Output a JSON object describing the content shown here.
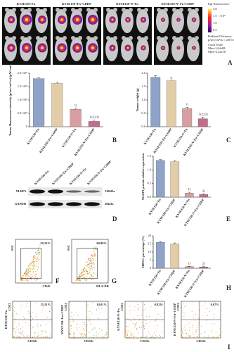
{
  "panel_a": {
    "panel": "A",
    "groups": [
      "KYSE150+Fn",
      "KYSE150+Fn+CDDP",
      "KYSE150-N+Fn",
      "KYSE150-N+Fn+CDDP"
    ],
    "colorbar": {
      "title": "Epi-fluorescence",
      "ticks": [
        "2.0",
        "1.5",
        "1.0",
        "0.5"
      ],
      "unit": "×10⁹",
      "label": "Radiant Efficiency",
      "units": "p/sec/cm²/sr / µW/cm²",
      "scale": "Color Scale",
      "min": "Min=1.64e08",
      "max": "Max=2.42e10"
    }
  },
  "panel_d": {
    "panel": "D",
    "lanes": [
      "KYSE150+Fn",
      "KYSE150+Fn+CDDP",
      "KYSE150-N+Fn",
      "KYSE150-N+Fn+CDDP"
    ],
    "bands": [
      {
        "name": "NLRP3",
        "size": "118kDa"
      },
      {
        "name": "GAPDH",
        "size": "36kDa"
      }
    ]
  },
  "flow": [
    {
      "panel": "F",
      "ylabel": "SSC",
      "xlabel": "CD45",
      "percent": "59.23%"
    },
    {
      "panel": "G",
      "ylabel": "SSC",
      "xlabel": "HLA-DR",
      "percent": "69.88%"
    }
  ],
  "panel_i": {
    "panel": "I",
    "ylabel": "CD33",
    "xlabel": "CD11b",
    "groups": [
      "KYSE150+Fn",
      "KYSE150+Fn+CDDP",
      "KYSE150-N+Fn",
      "KYSE150-N+Fn+CDDP"
    ],
    "percents": [
      "15.21%",
      "14.01%",
      "0.82%",
      "0.67%"
    ]
  },
  "chart_data": [
    {
      "type": "bar",
      "panel": "B",
      "ylabel": "Tumor fluorescence intensity (p/sec/cm²/sr)/(µW/cm²)",
      "categories": [
        "KYSE150+Fn",
        "KYSE150+Fn+CDDP",
        "KYSE150-N+Fn",
        "KYSE150-N+Fn+CDDP"
      ],
      "values": [
        1800000000,
        1620000000,
        650000000,
        200000000
      ],
      "errors": [
        30000000,
        40000000,
        40000000,
        50000000
      ],
      "annotations": [
        null,
        null,
        "1)",
        "1),2),3)"
      ],
      "colors": [
        "#8fa3c9",
        "#e3cda8",
        "#d99ea0",
        "#c46c8e"
      ],
      "ylim": [
        0,
        2000000000
      ],
      "yticks": [
        0,
        {
          "value": 500000000,
          "label": "5.0×10⁸"
        },
        {
          "value": 1000000000,
          "label": "1.0×10⁹"
        },
        {
          "value": 1500000000,
          "label": "1.5×10⁹"
        },
        {
          "value": 2000000000,
          "label": "2.0×10⁹"
        }
      ]
    },
    {
      "type": "bar",
      "panel": "C",
      "ylabel": "Tumor weight (g)",
      "categories": [
        "KYSE150+Fn",
        "KYSE150+Fn+CDDP",
        "KYSE150-N+Fn",
        "KYSE150-N+Fn+CDDP"
      ],
      "values": [
        1.85,
        1.72,
        0.68,
        0.3
      ],
      "errors": [
        0.06,
        0.1,
        0.05,
        0.06
      ],
      "annotations": [
        null,
        null,
        "1)",
        "1),2),3)"
      ],
      "colors": [
        "#8fa3c9",
        "#e3cda8",
        "#d99ea0",
        "#c46c8e"
      ],
      "ylim": [
        0,
        2.0
      ],
      "yticks": [
        {
          "value": 0,
          "label": "0.0"
        },
        0.5,
        {
          "value": 1,
          "label": "1.0"
        },
        1.5,
        {
          "value": 2,
          "label": "2.0"
        }
      ]
    },
    {
      "type": "bar",
      "panel": "E",
      "ylabel": "NLRP3 protein relative expression",
      "categories": [
        "KYSE150+Fn",
        "KYSE150+Fn+CDDP",
        "KYSE150-N+Fn",
        "KYSE150-N+Fn+CDDP"
      ],
      "values": [
        1.35,
        1.3,
        0.15,
        0.1
      ],
      "errors": [
        0.03,
        0.04,
        0.03,
        0.02
      ],
      "annotations": [
        null,
        null,
        "1)",
        "2)"
      ],
      "colors": [
        "#8fa3c9",
        "#e3cda8",
        "#d99ea0",
        "#c46c8e"
      ],
      "ylim": [
        0,
        1.5
      ],
      "yticks": [
        {
          "value": 0,
          "label": "0.0"
        },
        0.5,
        {
          "value": 1,
          "label": "1.0"
        },
        1.5
      ]
    },
    {
      "type": "bar",
      "panel": "H",
      "ylabel": "MDSCs percentage (%)",
      "categories": [
        "KYSE150+Fn",
        "KYSE150+Fn+CDDP",
        "KYSE150-N+Fn",
        "KYSE150-N+Fn+CDDP"
      ],
      "values": [
        16,
        15,
        1,
        0.8
      ],
      "errors": [
        0.5,
        0.6,
        0.2,
        0.2
      ],
      "annotations": [
        null,
        null,
        "1)",
        "2)"
      ],
      "colors": [
        "#8fa3c9",
        "#e3cda8",
        "#d99ea0",
        "#c46c8e"
      ],
      "ylim": [
        0,
        20
      ],
      "yticks": [
        0,
        5,
        10,
        15,
        20
      ]
    }
  ]
}
